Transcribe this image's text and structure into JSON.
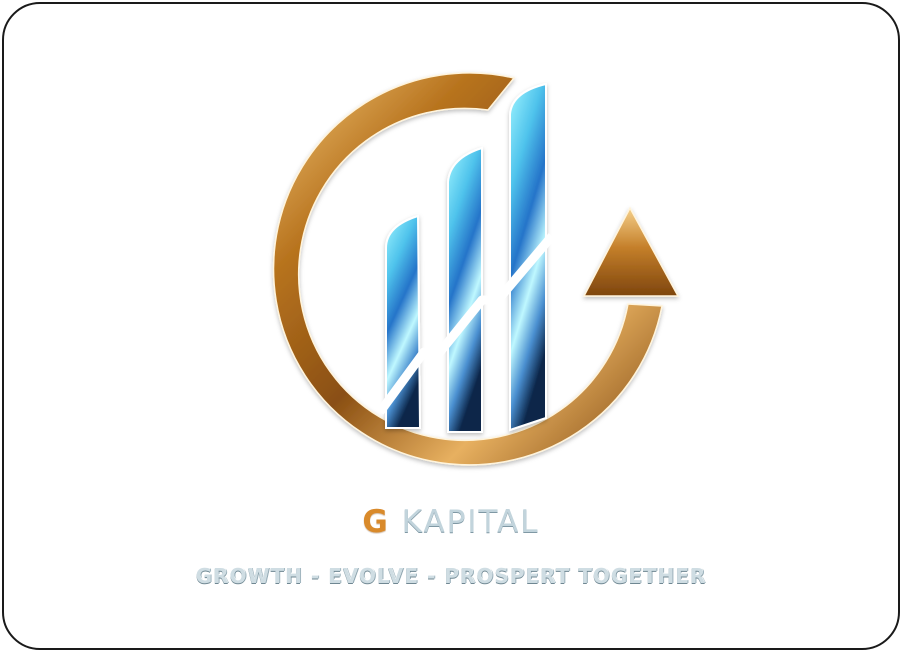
{
  "logo": {
    "icon": "g-kapital-growth-chart-logo",
    "colors": {
      "ring_gold": "#b0701f",
      "ring_highlight": "#f2c36b",
      "bar_light": "#8ff0ff",
      "bar_blue": "#2a7bd1",
      "bar_dark": "#0d2b4f"
    }
  },
  "brand": {
    "initial": "G",
    "name": " KAPITAL"
  },
  "tagline": "GROWTH - EVOLVE - PROSPERT TOGETHER"
}
